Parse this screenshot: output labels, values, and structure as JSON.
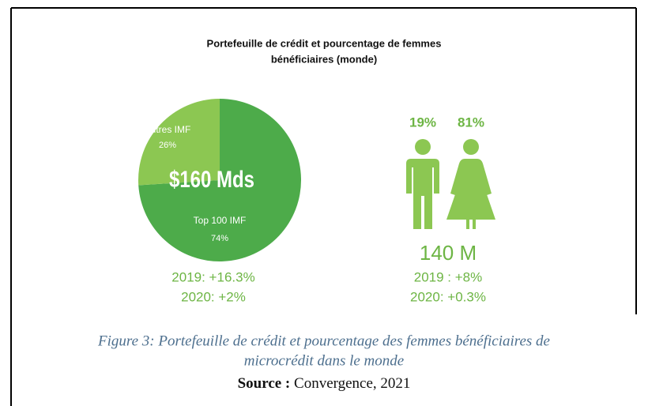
{
  "chart_data": {
    "type": "pie",
    "title": [
      "Portefeuille de crédit et pourcentage de femmes",
      "bénéficiaires (monde)"
    ],
    "categories": [
      "Top 100 IMF",
      "Autres IMF"
    ],
    "values": [
      74,
      26
    ],
    "value_labels": [
      "74%",
      "26%"
    ],
    "colors": [
      "#4dab4a",
      "#8cc752"
    ],
    "center_label": "$160 Mds",
    "annotations": [
      "2019: +16.3%",
      "2020: +2%"
    ]
  },
  "people": {
    "men": "19%",
    "women": "81%",
    "total": "140 M",
    "annotations": [
      "2019 : +8%",
      "2020: +0.3%"
    ]
  },
  "caption": [
    "Figure 3: Portefeuille de crédit et pourcentage des femmes bénéficiaires de",
    "microcrédit dans le monde"
  ],
  "source": {
    "label": "Source :",
    "text": " Convergence, 2021"
  }
}
